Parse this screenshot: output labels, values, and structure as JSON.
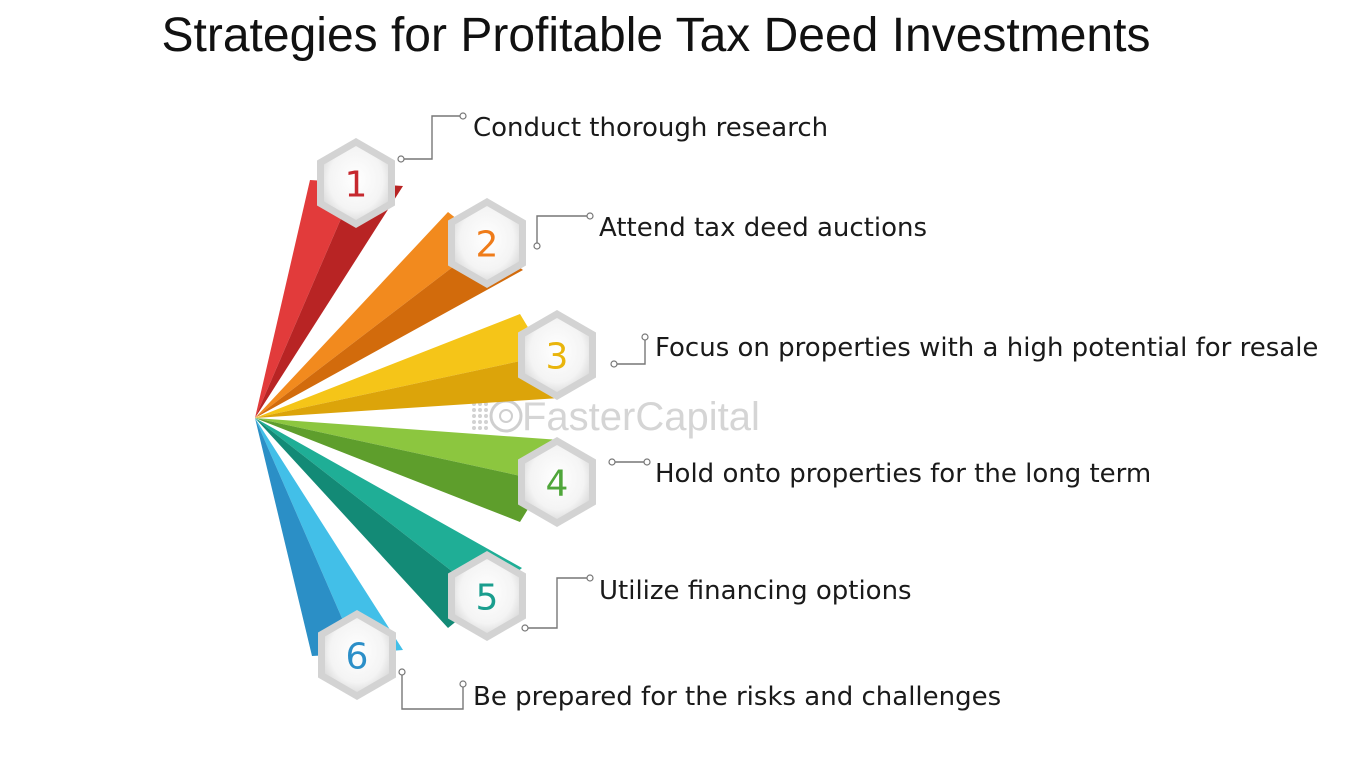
{
  "title": "Strategies for Profitable Tax Deed Investments",
  "watermark": "FasterCapital",
  "steps": [
    {
      "number": "1",
      "label": "Conduct thorough research",
      "color": "#e23b3b",
      "dark": "#b82424",
      "num_color": "#c6282e"
    },
    {
      "number": "2",
      "label": "Attend tax deed auctions",
      "color": "#f28a1e",
      "dark": "#d26b0c",
      "num_color": "#ef7c1a"
    },
    {
      "number": "3",
      "label": "Focus on properties with a high potential for resale",
      "color": "#f5c518",
      "dark": "#dca40a",
      "num_color": "#e9b50c"
    },
    {
      "number": "4",
      "label": "Hold onto properties for the long term",
      "color": "#8cc63f",
      "dark": "#5e9e2c",
      "num_color": "#4fa63a"
    },
    {
      "number": "5",
      "label": "Utilize financing options",
      "color": "#1fae96",
      "dark": "#138a76",
      "num_color": "#1a9e8e"
    },
    {
      "number": "6",
      "label": "Be prepared for the risks and challenges",
      "color": "#42bfe8",
      "dark": "#2b8fc6",
      "num_color": "#2c8fc8"
    }
  ]
}
